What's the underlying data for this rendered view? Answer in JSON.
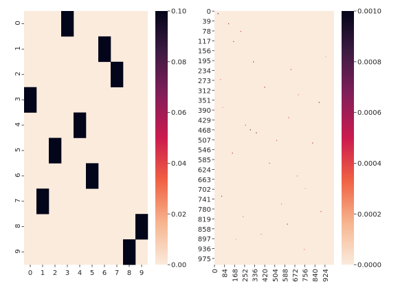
{
  "chart_data": [
    {
      "type": "heatmap",
      "rows": [
        "0",
        "1",
        "2",
        "3",
        "4",
        "5",
        "6",
        "7",
        "8",
        "9"
      ],
      "cols": [
        "0",
        "1",
        "2",
        "3",
        "4",
        "5",
        "6",
        "7",
        "8",
        "9"
      ],
      "cells": [
        {
          "row": 0,
          "col": 3,
          "value": 0.1
        },
        {
          "row": 1,
          "col": 6,
          "value": 0.1
        },
        {
          "row": 2,
          "col": 7,
          "value": 0.1
        },
        {
          "row": 3,
          "col": 0,
          "value": 0.1
        },
        {
          "row": 4,
          "col": 4,
          "value": 0.1
        },
        {
          "row": 5,
          "col": 2,
          "value": 0.1
        },
        {
          "row": 6,
          "col": 5,
          "value": 0.1
        },
        {
          "row": 7,
          "col": 1,
          "value": 0.1
        },
        {
          "row": 8,
          "col": 9,
          "value": 0.1
        },
        {
          "row": 9,
          "col": 8,
          "value": 0.1
        }
      ],
      "default_value": 0,
      "colorbar": {
        "range": [
          0,
          0.1
        ],
        "ticks": [
          "0.00",
          "0.02",
          "0.04",
          "0.06",
          "0.08",
          "0.10"
        ],
        "colors": [
          "#faebdd",
          "#f6b48e",
          "#f06043",
          "#cb1b4f",
          "#841e5a",
          "#3f1b44",
          "#03051a"
        ]
      }
    },
    {
      "type": "heatmap",
      "size": [
        1000,
        1000
      ],
      "y_ticks": [
        "0",
        "39",
        "78",
        "117",
        "156",
        "195",
        "234",
        "273",
        "312",
        "351",
        "390",
        "429",
        "468",
        "507",
        "546",
        "585",
        "624",
        "663",
        "702",
        "741",
        "780",
        "819",
        "858",
        "897",
        "936",
        "975"
      ],
      "x_ticks": [
        "0",
        "84",
        "168",
        "252",
        "336",
        "420",
        "504",
        "588",
        "672",
        "756",
        "840",
        "924"
      ],
      "cells": [
        [
          30,
          10,
          0.0009
        ],
        [
          118,
          50,
          0.0006
        ],
        [
          220,
          80,
          0.0004
        ],
        [
          160,
          120,
          0.0005
        ],
        [
          325,
          200,
          0.0007
        ],
        [
          640,
          230,
          0.0004
        ],
        [
          50,
          270,
          0.0003
        ],
        [
          420,
          300,
          0.0006
        ],
        [
          700,
          330,
          0.0003
        ],
        [
          875,
          360,
          0.0007
        ],
        [
          620,
          420,
          0.0004
        ],
        [
          260,
          450,
          0.0004
        ],
        [
          300,
          468,
          0.0008
        ],
        [
          350,
          480,
          0.0007
        ],
        [
          520,
          510,
          0.0004
        ],
        [
          820,
          520,
          0.0005
        ],
        [
          150,
          560,
          0.0005
        ],
        [
          460,
          600,
          0.0004
        ],
        [
          690,
          650,
          0.0003
        ],
        [
          60,
          730,
          0.0006
        ],
        [
          560,
          760,
          0.0003
        ],
        [
          890,
          790,
          0.0004
        ],
        [
          240,
          810,
          0.0003
        ],
        [
          610,
          840,
          0.0005
        ],
        [
          390,
          880,
          0.0003
        ],
        [
          180,
          900,
          0.0002
        ],
        [
          750,
          940,
          0.0003
        ],
        [
          930,
          180,
          0.0002
        ],
        [
          70,
          380,
          0.0002
        ],
        [
          760,
          700,
          0.0002
        ]
      ],
      "default_value": 0,
      "colorbar": {
        "range": [
          0,
          0.001
        ],
        "ticks": [
          "0.0000",
          "0.0002",
          "0.0004",
          "0.0006",
          "0.0008",
          "0.0010"
        ],
        "colors": [
          "#faebdd",
          "#f6b48e",
          "#f06043",
          "#cb1b4f",
          "#841e5a",
          "#3f1b44",
          "#03051a"
        ]
      }
    }
  ]
}
